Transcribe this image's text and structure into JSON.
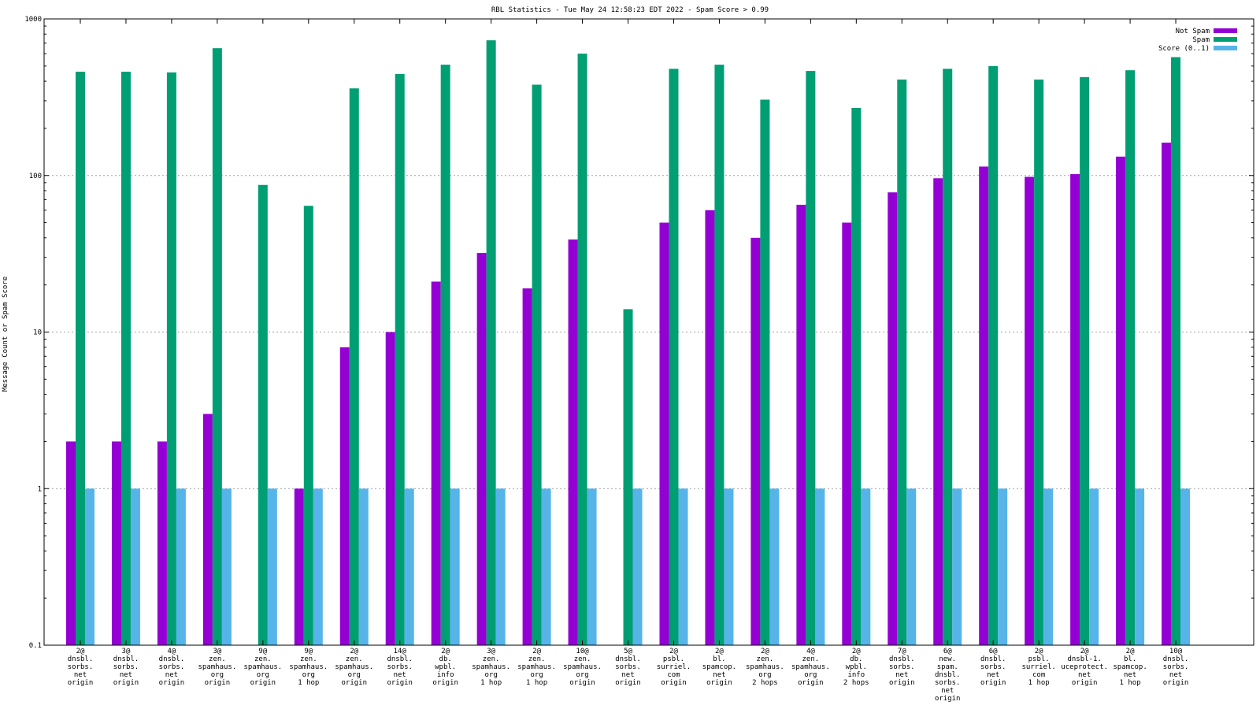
{
  "chart_data": {
    "type": "bar",
    "title": "RBL Statistics - Tue May 24 12:58:23 EDT 2022 - Spam Score > 0.99",
    "ylabel": "Message Count or Spam Score",
    "xlabel": "",
    "y_scale": "log",
    "ylim": [
      0.1,
      1000
    ],
    "y_ticks": [
      "0.1",
      "1",
      "10",
      "100",
      "1000"
    ],
    "grid": true,
    "legend_position": "top-right",
    "categories": [
      [
        "2@",
        "dnsbl.",
        "sorbs.",
        "net",
        "origin"
      ],
      [
        "3@",
        "dnsbl.",
        "sorbs.",
        "net",
        "origin"
      ],
      [
        "4@",
        "dnsbl.",
        "sorbs.",
        "net",
        "origin"
      ],
      [
        "3@",
        "zen.",
        "spamhaus.",
        "org",
        "origin"
      ],
      [
        "9@",
        "zen.",
        "spamhaus.",
        "org",
        "origin"
      ],
      [
        "9@",
        "zen.",
        "spamhaus.",
        "org",
        "1 hop"
      ],
      [
        "2@",
        "zen.",
        "spamhaus.",
        "org",
        "origin"
      ],
      [
        "14@",
        "dnsbl.",
        "sorbs.",
        "net",
        "origin"
      ],
      [
        "2@",
        "db.",
        "wpbl.",
        "info",
        "origin"
      ],
      [
        "3@",
        "zen.",
        "spamhaus.",
        "org",
        "1 hop"
      ],
      [
        "2@",
        "zen.",
        "spamhaus.",
        "org",
        "1 hop"
      ],
      [
        "10@",
        "zen.",
        "spamhaus.",
        "org",
        "origin"
      ],
      [
        "5@",
        "dnsbl.",
        "sorbs.",
        "net",
        "origin"
      ],
      [
        "2@",
        "psbl.",
        "surriel.",
        "com",
        "origin"
      ],
      [
        "2@",
        "bl.",
        "spamcop.",
        "net",
        "origin"
      ],
      [
        "2@",
        "zen.",
        "spamhaus.",
        "org",
        "2 hops"
      ],
      [
        "4@",
        "zen.",
        "spamhaus.",
        "org",
        "origin"
      ],
      [
        "2@",
        "db.",
        "wpbl.",
        "info",
        "2 hops"
      ],
      [
        "7@",
        "dnsbl.",
        "sorbs.",
        "net",
        "origin"
      ],
      [
        "6@",
        "new.",
        "spam.",
        "dnsbl.",
        "sorbs.",
        "net",
        "origin"
      ],
      [
        "6@",
        "dnsbl.",
        "sorbs.",
        "net",
        "origin"
      ],
      [
        "2@",
        "psbl.",
        "surriel.",
        "com",
        "1 hop"
      ],
      [
        "2@",
        "dnsbl-1.",
        "uceprotect.",
        "net",
        "origin"
      ],
      [
        "2@",
        "bl.",
        "spamcop.",
        "net",
        "1 hop"
      ],
      [
        "10@",
        "dnsbl.",
        "sorbs.",
        "net",
        "origin"
      ]
    ],
    "series": [
      {
        "name": "Not Spam",
        "color": "#9400d3",
        "values": [
          2,
          2,
          2,
          3,
          null,
          1,
          8,
          10,
          21,
          32,
          19,
          39,
          null,
          50,
          60,
          40,
          65,
          50,
          78,
          96,
          114,
          98,
          102,
          132,
          162
        ]
      },
      {
        "name": "Spam",
        "color": "#009e73",
        "values": [
          460,
          460,
          455,
          650,
          87,
          64,
          360,
          445,
          510,
          730,
          380,
          600,
          14,
          480,
          510,
          305,
          465,
          270,
          410,
          480,
          500,
          410,
          425,
          470,
          570
        ]
      },
      {
        "name": "Score (0..1)",
        "color": "#56b4e9",
        "values": [
          1,
          1,
          1,
          1,
          1,
          1,
          1,
          1,
          1,
          1,
          1,
          1,
          1,
          1,
          1,
          1,
          1,
          1,
          1,
          1,
          1,
          1,
          1,
          1,
          1
        ]
      }
    ]
  }
}
